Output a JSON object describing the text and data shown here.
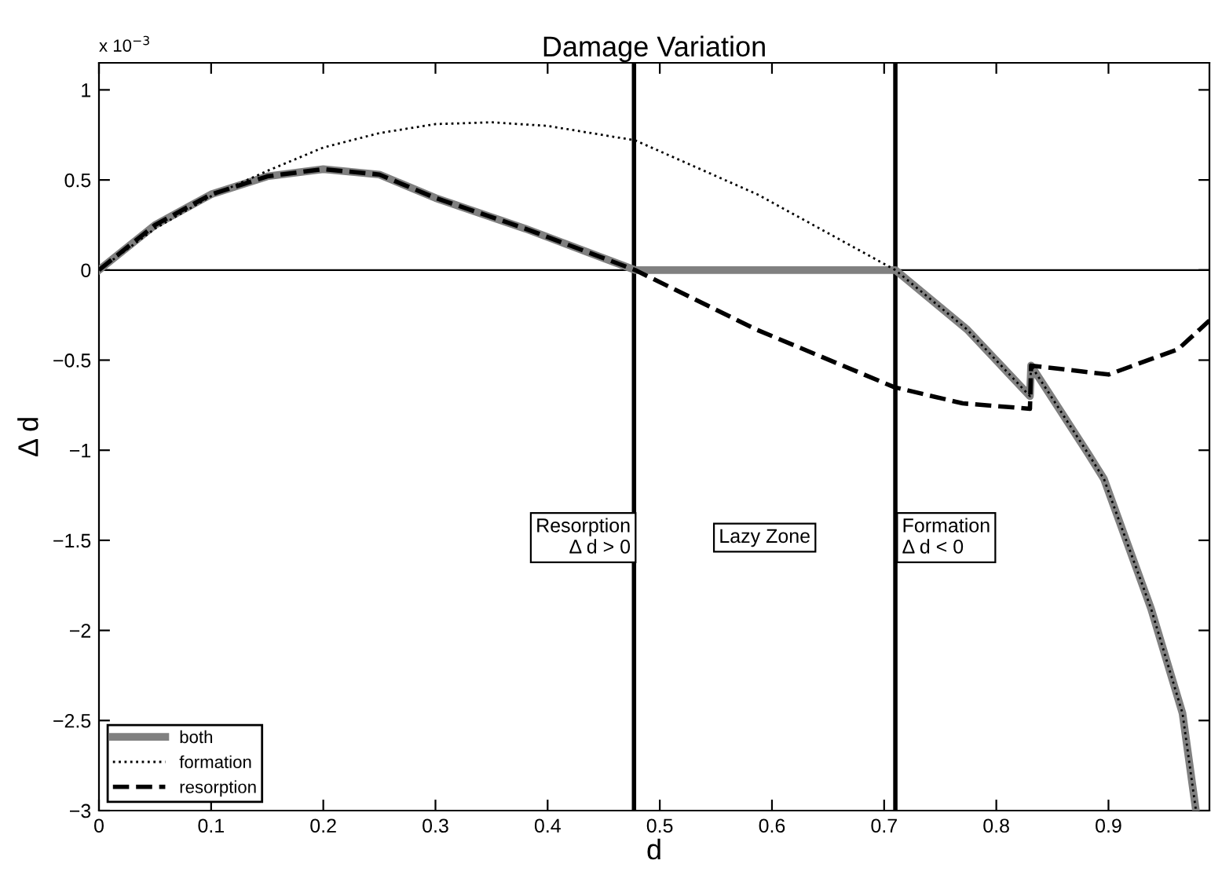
{
  "chart_data": {
    "type": "line",
    "title": "Damage Variation",
    "xlabel": "d",
    "ylabel": "Δ d",
    "xlim": [
      0,
      0.99
    ],
    "ylim": [
      -3,
      1.15
    ],
    "xticks": [
      0,
      0.1,
      0.2,
      0.3,
      0.4,
      0.5,
      0.6,
      0.7,
      0.8,
      0.9
    ],
    "yticks": [
      {
        "value": -3,
        "label": "−3"
      },
      {
        "value": -2.5,
        "label": "−2.5"
      },
      {
        "value": -2,
        "label": "−2"
      },
      {
        "value": -1.5,
        "label": "−1.5"
      },
      {
        "value": -1,
        "label": "−1"
      },
      {
        "value": -0.5,
        "label": "−0.5"
      },
      0,
      0.5,
      1
    ],
    "grid": false,
    "legend": "bottom left",
    "series": [
      {
        "name": "both",
        "color": "#808080",
        "line_style": "solid",
        "x": [
          0,
          0.05,
          0.1,
          0.15,
          0.2,
          0.25,
          0.3,
          0.38,
          0.478,
          0.6,
          0.71,
          0.774,
          0.83,
          0.831,
          0.882,
          0.896,
          0.938,
          0.966,
          0.978
        ],
        "values": [
          0,
          0.25,
          0.42,
          0.52,
          0.56,
          0.53,
          0.4,
          0.23,
          0,
          0,
          0,
          -0.33,
          -0.7,
          -0.53,
          -1.02,
          -1.16,
          -1.88,
          -2.46,
          -3
        ]
      },
      {
        "name": "formation",
        "color": "#000000",
        "line_style": "dotted",
        "x": [
          0,
          0.05,
          0.1,
          0.15,
          0.2,
          0.25,
          0.3,
          0.35,
          0.4,
          0.478,
          0.587,
          0.71,
          0.774,
          0.83,
          0.831,
          0.882,
          0.896,
          0.938,
          0.966,
          0.978
        ],
        "values": [
          0,
          0.23,
          0.41,
          0.55,
          0.68,
          0.76,
          0.81,
          0.82,
          0.8,
          0.72,
          0.42,
          0,
          -0.33,
          -0.7,
          -0.53,
          -1.02,
          -1.16,
          -1.88,
          -2.46,
          -3
        ]
      },
      {
        "name": "resorption",
        "color": "#000000",
        "line_style": "dashed",
        "x": [
          0,
          0.05,
          0.1,
          0.15,
          0.2,
          0.25,
          0.3,
          0.38,
          0.478,
          0.586,
          0.709,
          0.77,
          0.83,
          0.831,
          0.9,
          0.962,
          0.99
        ],
        "values": [
          0,
          0.25,
          0.42,
          0.52,
          0.56,
          0.53,
          0.4,
          0.23,
          0,
          -0.33,
          -0.65,
          -0.74,
          -0.77,
          -0.53,
          -0.58,
          -0.44,
          -0.28
        ]
      }
    ],
    "ref_lines": [
      {
        "axis": "y",
        "value": 0,
        "color": "#000000"
      },
      {
        "axis": "x",
        "value": 0.477,
        "color": "#000000"
      },
      {
        "axis": "x",
        "value": 0.71,
        "color": "#000000"
      }
    ],
    "annotations": [
      "x 10$^{−3}$",
      "Resorption\nΔ d > 0",
      "Lazy Zone",
      "Formation\nΔ d < 0"
    ]
  }
}
